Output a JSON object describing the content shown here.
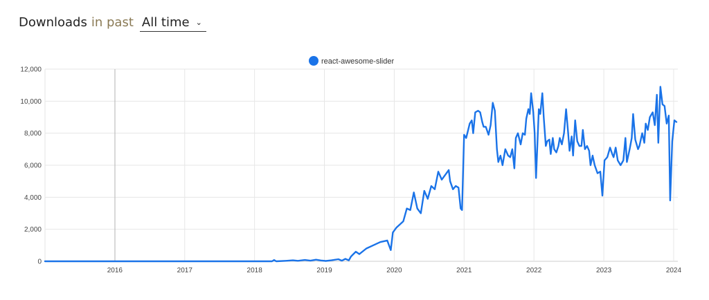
{
  "header": {
    "title": "Downloads",
    "subtitle": "in past",
    "range_select": {
      "value": "All time"
    }
  },
  "colors": {
    "line": "#1a73e8",
    "grid": "#e6e6e6",
    "hover_line": "#b5b5b5"
  },
  "chart_data": {
    "type": "line",
    "title": "",
    "xlabel": "",
    "ylabel": "",
    "legend": {
      "position": "top",
      "entries": [
        "react-awesome-slider"
      ]
    },
    "grid": true,
    "ylim": [
      0,
      12000
    ],
    "xlim": [
      2015.0,
      2024.06
    ],
    "y_ticks": [
      0,
      2000,
      4000,
      6000,
      8000,
      10000,
      12000
    ],
    "y_tick_labels": [
      "0",
      "2,000",
      "4,000",
      "6,000",
      "8,000",
      "10,000",
      "12,000"
    ],
    "x_ticks": [
      2016,
      2017,
      2018,
      2019,
      2020,
      2021,
      2022,
      2023,
      2024
    ],
    "x_tick_labels": [
      "2016",
      "2017",
      "2018",
      "2019",
      "2020",
      "2021",
      "2022",
      "2023",
      "2024"
    ],
    "series": [
      {
        "name": "react-awesome-slider",
        "points": [
          [
            2015.0,
            0
          ],
          [
            2018.25,
            0
          ],
          [
            2018.28,
            80
          ],
          [
            2018.31,
            0
          ],
          [
            2018.45,
            30
          ],
          [
            2018.55,
            60
          ],
          [
            2018.62,
            30
          ],
          [
            2018.72,
            80
          ],
          [
            2018.8,
            40
          ],
          [
            2018.88,
            100
          ],
          [
            2018.95,
            50
          ],
          [
            2019.02,
            20
          ],
          [
            2019.1,
            60
          ],
          [
            2019.2,
            130
          ],
          [
            2019.25,
            40
          ],
          [
            2019.3,
            150
          ],
          [
            2019.35,
            60
          ],
          [
            2019.38,
            300
          ],
          [
            2019.45,
            600
          ],
          [
            2019.5,
            450
          ],
          [
            2019.6,
            800
          ],
          [
            2019.7,
            1000
          ],
          [
            2019.8,
            1200
          ],
          [
            2019.9,
            1300
          ],
          [
            2019.95,
            700
          ],
          [
            2019.98,
            1800
          ],
          [
            2020.03,
            2100
          ],
          [
            2020.08,
            2300
          ],
          [
            2020.13,
            2500
          ],
          [
            2020.18,
            3300
          ],
          [
            2020.23,
            3200
          ],
          [
            2020.28,
            4300
          ],
          [
            2020.33,
            3300
          ],
          [
            2020.38,
            3000
          ],
          [
            2020.43,
            4400
          ],
          [
            2020.48,
            3900
          ],
          [
            2020.53,
            4700
          ],
          [
            2020.58,
            4500
          ],
          [
            2020.63,
            5600
          ],
          [
            2020.68,
            5100
          ],
          [
            2020.73,
            5400
          ],
          [
            2020.78,
            5700
          ],
          [
            2020.8,
            5000
          ],
          [
            2020.84,
            4500
          ],
          [
            2020.88,
            4700
          ],
          [
            2020.92,
            4600
          ],
          [
            2020.95,
            3300
          ],
          [
            2020.97,
            3200
          ],
          [
            2021.0,
            7900
          ],
          [
            2021.03,
            7700
          ],
          [
            2021.08,
            8600
          ],
          [
            2021.11,
            8800
          ],
          [
            2021.13,
            8000
          ],
          [
            2021.16,
            9300
          ],
          [
            2021.2,
            9400
          ],
          [
            2021.23,
            9300
          ],
          [
            2021.26,
            8700
          ],
          [
            2021.28,
            8400
          ],
          [
            2021.31,
            8400
          ],
          [
            2021.35,
            7900
          ],
          [
            2021.38,
            8500
          ],
          [
            2021.41,
            9900
          ],
          [
            2021.44,
            9400
          ],
          [
            2021.47,
            7000
          ],
          [
            2021.49,
            6200
          ],
          [
            2021.52,
            6600
          ],
          [
            2021.55,
            6000
          ],
          [
            2021.59,
            7000
          ],
          [
            2021.63,
            6600
          ],
          [
            2021.66,
            6500
          ],
          [
            2021.69,
            7000
          ],
          [
            2021.72,
            5800
          ],
          [
            2021.74,
            7700
          ],
          [
            2021.77,
            8000
          ],
          [
            2021.81,
            7300
          ],
          [
            2021.84,
            8000
          ],
          [
            2021.87,
            7900
          ],
          [
            2021.89,
            8900
          ],
          [
            2021.92,
            9500
          ],
          [
            2021.94,
            9200
          ],
          [
            2021.96,
            10500
          ],
          [
            2021.99,
            9300
          ],
          [
            2022.01,
            8000
          ],
          [
            2022.03,
            5200
          ],
          [
            2022.07,
            9500
          ],
          [
            2022.09,
            9200
          ],
          [
            2022.12,
            10500
          ],
          [
            2022.14,
            9000
          ],
          [
            2022.17,
            7200
          ],
          [
            2022.19,
            7500
          ],
          [
            2022.22,
            7600
          ],
          [
            2022.24,
            6700
          ],
          [
            2022.27,
            7700
          ],
          [
            2022.29,
            7000
          ],
          [
            2022.32,
            6800
          ],
          [
            2022.35,
            7200
          ],
          [
            2022.37,
            7700
          ],
          [
            2022.4,
            7300
          ],
          [
            2022.43,
            8000
          ],
          [
            2022.46,
            9500
          ],
          [
            2022.49,
            8000
          ],
          [
            2022.51,
            6900
          ],
          [
            2022.54,
            7800
          ],
          [
            2022.56,
            6600
          ],
          [
            2022.59,
            8800
          ],
          [
            2022.62,
            7500
          ],
          [
            2022.65,
            7200
          ],
          [
            2022.68,
            7200
          ],
          [
            2022.7,
            8200
          ],
          [
            2022.73,
            7000
          ],
          [
            2022.76,
            7200
          ],
          [
            2022.79,
            6900
          ],
          [
            2022.81,
            6000
          ],
          [
            2022.84,
            6600
          ],
          [
            2022.87,
            6000
          ],
          [
            2022.91,
            5500
          ],
          [
            2022.95,
            5600
          ],
          [
            2022.98,
            4100
          ],
          [
            2023.01,
            6300
          ],
          [
            2023.05,
            6500
          ],
          [
            2023.09,
            7100
          ],
          [
            2023.12,
            6700
          ],
          [
            2023.14,
            6500
          ],
          [
            2023.17,
            7100
          ],
          [
            2023.2,
            6300
          ],
          [
            2023.24,
            6000
          ],
          [
            2023.28,
            6300
          ],
          [
            2023.31,
            7700
          ],
          [
            2023.33,
            6200
          ],
          [
            2023.37,
            7000
          ],
          [
            2023.4,
            7700
          ],
          [
            2023.42,
            9200
          ],
          [
            2023.45,
            7600
          ],
          [
            2023.49,
            7000
          ],
          [
            2023.51,
            7200
          ],
          [
            2023.55,
            8000
          ],
          [
            2023.58,
            7400
          ],
          [
            2023.6,
            8600
          ],
          [
            2023.63,
            8200
          ],
          [
            2023.66,
            9000
          ],
          [
            2023.7,
            9300
          ],
          [
            2023.73,
            8500
          ],
          [
            2023.76,
            10400
          ],
          [
            2023.78,
            7400
          ],
          [
            2023.81,
            10900
          ],
          [
            2023.84,
            9800
          ],
          [
            2023.87,
            9700
          ],
          [
            2023.9,
            8600
          ],
          [
            2023.93,
            9100
          ],
          [
            2023.95,
            3800
          ],
          [
            2023.98,
            7500
          ],
          [
            2024.01,
            8800
          ],
          [
            2024.04,
            8700
          ]
        ]
      }
    ]
  }
}
